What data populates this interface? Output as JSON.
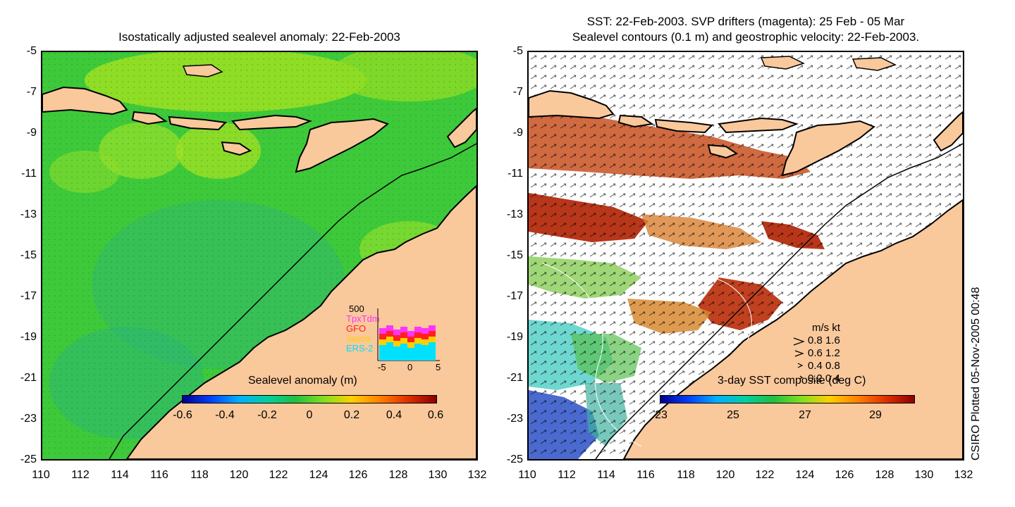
{
  "left_panel": {
    "title": "Isostatically adjusted sealevel anomaly: 22-Feb-2003",
    "colorbar_title": "Sealevel anomaly (m)",
    "colorbar_labels": [
      "-0.6",
      "-0.4",
      "-0.2",
      "0",
      "0.2",
      "0.4",
      "0.6"
    ],
    "inset": {
      "ymax_label": "500",
      "satellites": [
        {
          "name": "TpxTdm",
          "color": "#ff33ff"
        },
        {
          "name": "GFO",
          "color": "#ff2020"
        },
        {
          "name": "Jason",
          "color": "#ffd000"
        },
        {
          "name": "ERS-2",
          "color": "#00e0ff"
        }
      ],
      "x_labels": [
        "-5",
        "0",
        "5"
      ]
    }
  },
  "right_panel": {
    "title_line1": "SST: 22-Feb-2003. SVP drifters (magenta): 25 Feb - 05 Mar",
    "title_line2": "Sealevel contours (0.1 m) and geostrophic velocity: 22-Feb-2003.",
    "colorbar_title": "3-day SST composite (deg C)",
    "colorbar_labels": [
      "23",
      "25",
      "27",
      "29"
    ],
    "speed_legend": {
      "header": "m/s  kt",
      "rows": [
        "0.8  1.6",
        "0.6  1.2",
        "0.4  0.8",
        "0.2  0.4"
      ]
    }
  },
  "y_ticks": [
    "-5",
    "-7",
    "-9",
    "-11",
    "-13",
    "-15",
    "-17",
    "-19",
    "-21",
    "-23",
    "-25"
  ],
  "x_ticks": [
    "110",
    "112",
    "114",
    "116",
    "118",
    "120",
    "122",
    "124",
    "126",
    "128",
    "130",
    "132"
  ],
  "credit": "CSIRO Plotted 05-Nov-2005 00:48",
  "colors": {
    "land": "#f9c89b",
    "ocean_green": "#3ec93a",
    "ocean_yellowgreen": "#9ee022",
    "sst_red": "#b8361a",
    "coast": "#000000"
  }
}
